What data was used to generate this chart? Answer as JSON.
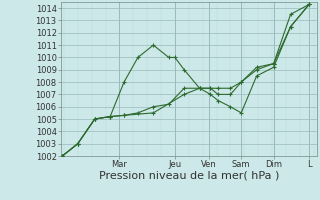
{
  "background_color": "#cce8e8",
  "grid_color_major": "#99bbbb",
  "grid_color_minor": "#bbdddd",
  "line_color": "#2d6a2d",
  "ylim": [
    1002,
    1014.5
  ],
  "xlim": [
    0,
    8.3
  ],
  "yticks": [
    1002,
    1003,
    1004,
    1005,
    1006,
    1007,
    1008,
    1009,
    1010,
    1011,
    1012,
    1013,
    1014
  ],
  "xlabel": "Pression niveau de la mer( hPa )",
  "xlabel_fontsize": 8,
  "tick_fontsize": 6,
  "day_labels": [
    "Mar",
    "Jeu",
    "Ven",
    "Sam",
    "Dim",
    "L"
  ],
  "day_positions": [
    1.9,
    3.7,
    4.8,
    5.85,
    6.9,
    8.05
  ],
  "series1_x": [
    0.05,
    0.55,
    1.1,
    1.6,
    2.05,
    2.5,
    3.0,
    3.5,
    3.7,
    4.0,
    4.5,
    4.85,
    5.1,
    5.5,
    5.85,
    6.35,
    6.9,
    7.45,
    8.05
  ],
  "series1_y": [
    1002,
    1003,
    1005,
    1005.2,
    1008,
    1010,
    1011,
    1010,
    1010,
    1009,
    1007.5,
    1007.5,
    1007.5,
    1007.5,
    1008,
    1009,
    1009.5,
    1013.5,
    1014.3
  ],
  "series2_x": [
    0.05,
    0.55,
    1.1,
    1.6,
    2.05,
    2.5,
    3.0,
    3.5,
    4.0,
    4.5,
    4.85,
    5.1,
    5.5,
    5.85,
    6.35,
    6.9,
    7.45,
    8.05
  ],
  "series2_y": [
    1002,
    1003,
    1005,
    1005.2,
    1005.3,
    1005.5,
    1006,
    1006.2,
    1007.5,
    1007.5,
    1007.5,
    1007,
    1007,
    1008,
    1009.2,
    1009.5,
    1012.5,
    1014.3
  ],
  "series3_x": [
    0.05,
    0.55,
    1.1,
    1.6,
    2.05,
    3.0,
    4.0,
    4.5,
    4.85,
    5.1,
    5.5,
    5.85,
    6.35,
    6.9,
    7.45,
    8.05
  ],
  "series3_y": [
    1002,
    1003,
    1005,
    1005.2,
    1005.3,
    1005.5,
    1007,
    1007.5,
    1007,
    1006.5,
    1006,
    1005.5,
    1008.5,
    1009.2,
    1012.5,
    1014.3
  ]
}
